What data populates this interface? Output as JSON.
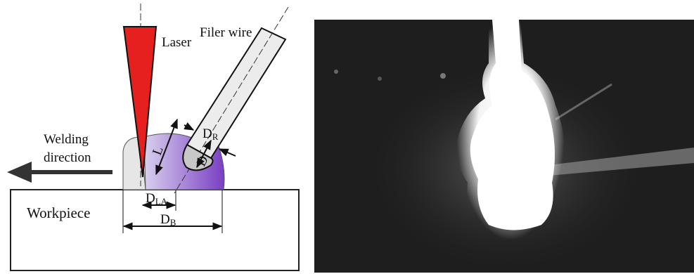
{
  "diagram": {
    "laser": "Laser",
    "filler_wire": "Filer wire",
    "welding_direction": [
      "Welding",
      "direction"
    ],
    "workpiece": "Workpiece",
    "d_la": {
      "main": "D",
      "sub": "LA"
    },
    "d_b": {
      "main": "D",
      "sub": "B"
    },
    "d_r": {
      "main": "D",
      "sub": "R"
    },
    "l": "L",
    "d": "D"
  }
}
